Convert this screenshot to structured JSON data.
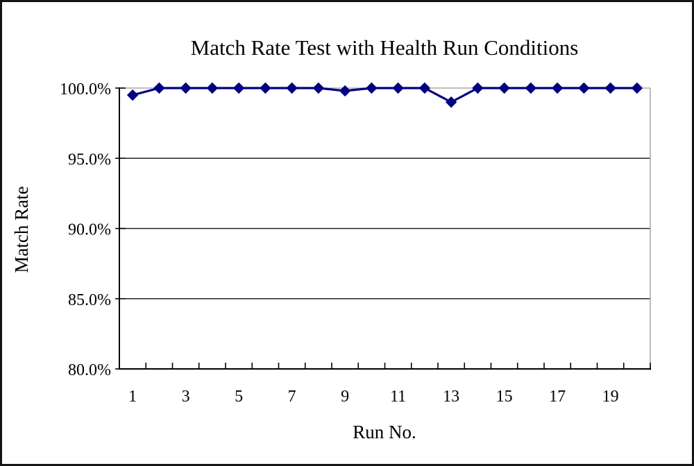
{
  "window": {
    "background": "#ffffff",
    "frame_color": "#151515"
  },
  "chart_data": {
    "type": "line",
    "title": "Match Rate Test with Health Run Conditions",
    "xlabel": "Run No.",
    "ylabel": "Match Rate",
    "x": [
      1,
      2,
      3,
      4,
      5,
      6,
      7,
      8,
      9,
      10,
      11,
      12,
      13,
      14,
      15,
      16,
      17,
      18,
      19,
      20
    ],
    "values": [
      99.5,
      100.0,
      100.0,
      100.0,
      100.0,
      100.0,
      100.0,
      100.0,
      99.8,
      100.0,
      100.0,
      100.0,
      99.0,
      100.0,
      100.0,
      100.0,
      100.0,
      100.0,
      100.0,
      100.0
    ],
    "unit": "percent",
    "ylim": [
      80.0,
      100.0
    ],
    "ytick_values": [
      100.0,
      95.0,
      90.0,
      85.0,
      80.0
    ],
    "ytick_labels": [
      "100.0%",
      "95.0%",
      "90.0%",
      "85.0%",
      "80.0%"
    ],
    "xtick_values": [
      1,
      3,
      5,
      7,
      9,
      11,
      13,
      15,
      17,
      19
    ],
    "xtick_labels": [
      "1",
      "3",
      "5",
      "7",
      "9",
      "11",
      "13",
      "15",
      "17",
      "19"
    ],
    "grid": "horizontal-major",
    "legend": "none",
    "marker": "diamond",
    "colors": {
      "series": "#000080",
      "axis": "#000000",
      "major_gridline": "#262626",
      "top_right_border": "#ababab"
    }
  }
}
